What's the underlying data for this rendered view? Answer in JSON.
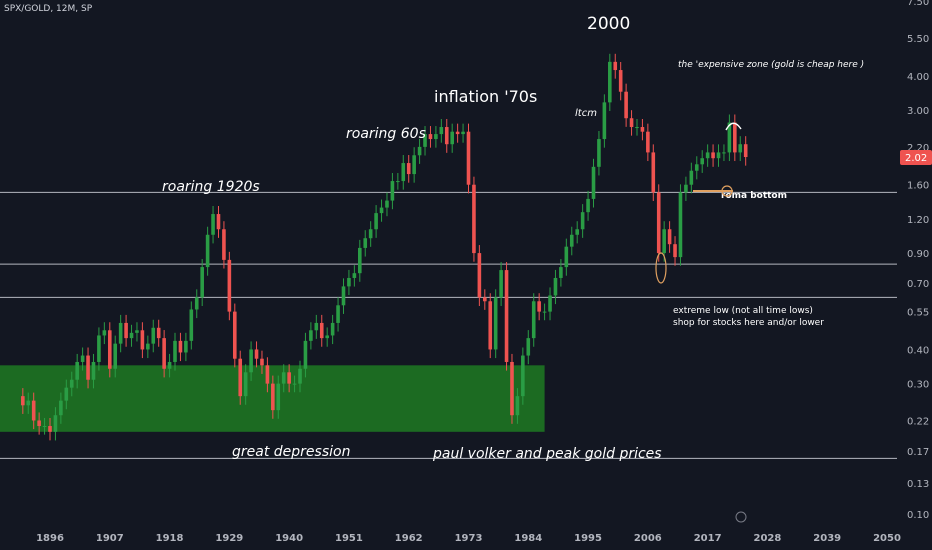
{
  "symbol": "SPX/GOLD, 12M, SP",
  "colors": {
    "up": "#26a69a",
    "up_candle": "#2a9d45",
    "down": "#ef5350",
    "bg": "#131722",
    "zone": "#1e7a22",
    "price_badge": "#ef5350"
  },
  "current_price": "2.02",
  "chart_data": {
    "type": "candlestick",
    "scale": "log",
    "y_ticks": [
      "7.50",
      "5.50",
      "4.00",
      "3.00",
      "2.20",
      "1.60",
      "1.20",
      "0.90",
      "0.70",
      "0.55",
      "0.40",
      "0.30",
      "0.22",
      "0.17",
      "0.13",
      "0.10"
    ],
    "x_ticks": [
      "1896",
      "1907",
      "1918",
      "1929",
      "1940",
      "1951",
      "1962",
      "1973",
      "1984",
      "1995",
      "2006",
      "2017",
      "2028",
      "2039",
      "2050"
    ],
    "ylim": [
      0.095,
      7.5
    ],
    "horizontal_levels": [
      1.5,
      0.82,
      0.62,
      0.16
    ],
    "zone": {
      "x_start": 1890,
      "x_end": 1987,
      "y_low": 0.2,
      "y_high": 0.35
    },
    "years": [
      1890,
      1891,
      1892,
      1893,
      1894,
      1895,
      1896,
      1897,
      1898,
      1899,
      1900,
      1901,
      1902,
      1903,
      1904,
      1905,
      1906,
      1907,
      1908,
      1909,
      1910,
      1911,
      1912,
      1913,
      1914,
      1915,
      1916,
      1917,
      1918,
      1919,
      1920,
      1921,
      1922,
      1923,
      1924,
      1925,
      1926,
      1927,
      1928,
      1929,
      1930,
      1931,
      1932,
      1933,
      1934,
      1935,
      1936,
      1937,
      1938,
      1939,
      1940,
      1941,
      1942,
      1943,
      1944,
      1945,
      1946,
      1947,
      1948,
      1949,
      1950,
      1951,
      1952,
      1953,
      1954,
      1955,
      1956,
      1957,
      1958,
      1959,
      1960,
      1961,
      1962,
      1963,
      1964,
      1965,
      1966,
      1967,
      1968,
      1969,
      1970,
      1971,
      1972,
      1973,
      1974,
      1975,
      1976,
      1977,
      1978,
      1979,
      1980,
      1981,
      1982,
      1983,
      1984,
      1985,
      1986,
      1987,
      1988,
      1989,
      1990,
      1991,
      1992,
      1993,
      1994,
      1995,
      1996,
      1997,
      1998,
      1999,
      2000,
      2001,
      2002,
      2003,
      2004,
      2005,
      2006,
      2007,
      2008,
      2009,
      2010,
      2011,
      2012,
      2013,
      2014,
      2015,
      2016,
      2017,
      2018,
      2019,
      2020,
      2021,
      2022,
      2023,
      2024
    ],
    "close": [
      0.27,
      0.25,
      0.26,
      0.22,
      0.21,
      0.21,
      0.2,
      0.23,
      0.26,
      0.29,
      0.31,
      0.36,
      0.38,
      0.31,
      0.36,
      0.45,
      0.47,
      0.34,
      0.42,
      0.5,
      0.44,
      0.46,
      0.47,
      0.4,
      0.42,
      0.48,
      0.44,
      0.34,
      0.36,
      0.43,
      0.39,
      0.43,
      0.56,
      0.62,
      0.8,
      1.05,
      1.25,
      1.1,
      0.85,
      0.55,
      0.37,
      0.27,
      0.33,
      0.4,
      0.37,
      0.35,
      0.3,
      0.24,
      0.3,
      0.33,
      0.3,
      0.3,
      0.34,
      0.43,
      0.47,
      0.5,
      0.44,
      0.45,
      0.5,
      0.58,
      0.68,
      0.73,
      0.76,
      0.94,
      1.02,
      1.1,
      1.26,
      1.32,
      1.4,
      1.65,
      1.65,
      1.92,
      1.75,
      2.05,
      2.2,
      2.45,
      2.35,
      2.45,
      2.6,
      2.25,
      2.5,
      2.45,
      2.5,
      1.6,
      0.9,
      0.62,
      0.6,
      0.4,
      0.62,
      0.78,
      0.36,
      0.23,
      0.27,
      0.38,
      0.44,
      0.6,
      0.55,
      0.55,
      0.63,
      0.73,
      0.8,
      0.95,
      1.05,
      1.1,
      1.27,
      1.42,
      1.86,
      2.35,
      3.2,
      4.5,
      4.2,
      3.5,
      2.8,
      2.6,
      2.6,
      2.5,
      2.1,
      1.5,
      0.9,
      1.1,
      0.97,
      0.87,
      1.5,
      1.6,
      1.8,
      1.9,
      2.0,
      2.1,
      2.0,
      2.1,
      2.1,
      2.7,
      2.1,
      2.25,
      2.02
    ],
    "annotations": {
      "title_2000": "2000",
      "inflation": "inflation '70s",
      "roaring60s": "roaring 60s",
      "roaring1920s": "roaring 1920s",
      "ltcm": "ltcm",
      "expensive": "the 'expensive zone (gold is cheap here )",
      "roma": "roma bottom",
      "extreme1": "extreme low (not all time lows)",
      "extreme2": "shop for stocks here and/or lower",
      "depression": "great depression",
      "volker": "paul volker and peak gold prices"
    }
  }
}
